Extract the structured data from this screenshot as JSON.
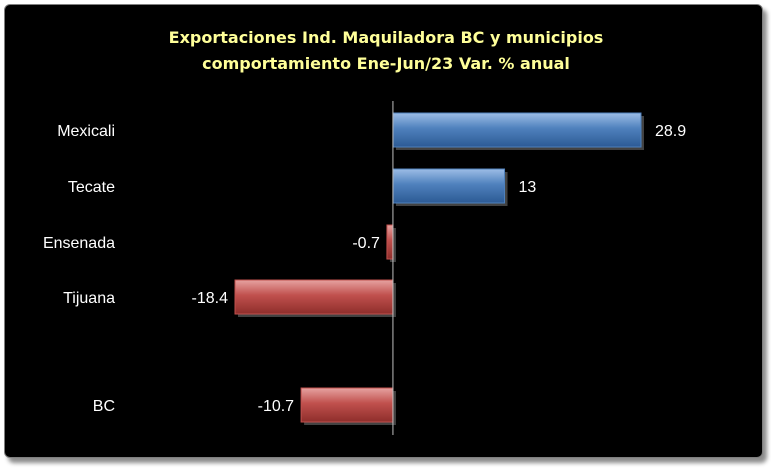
{
  "chart_data": {
    "type": "bar",
    "orientation": "horizontal",
    "title": "Exportaciones Ind. Maquiladora BC y municipios",
    "subtitle": "comportamiento Ene-Jun/23 Var. % anual",
    "categories": [
      "Mexicali",
      "Tecate",
      "Ensenada",
      "Tijuana",
      "BC"
    ],
    "values": [
      28.9,
      13,
      -0.7,
      -18.4,
      -10.7
    ],
    "value_labels": [
      "28.9",
      "13",
      "-0.7",
      "-18.4",
      "-10.7"
    ],
    "xlim": [
      -18.4,
      28.9
    ],
    "grid": false,
    "legend": "none",
    "colors": {
      "positive": "#4f81bd",
      "negative": "#c0504d",
      "background": "#000000",
      "title": "#ffff99",
      "text": "#ffffff",
      "axis": "#bfbfbf"
    }
  }
}
